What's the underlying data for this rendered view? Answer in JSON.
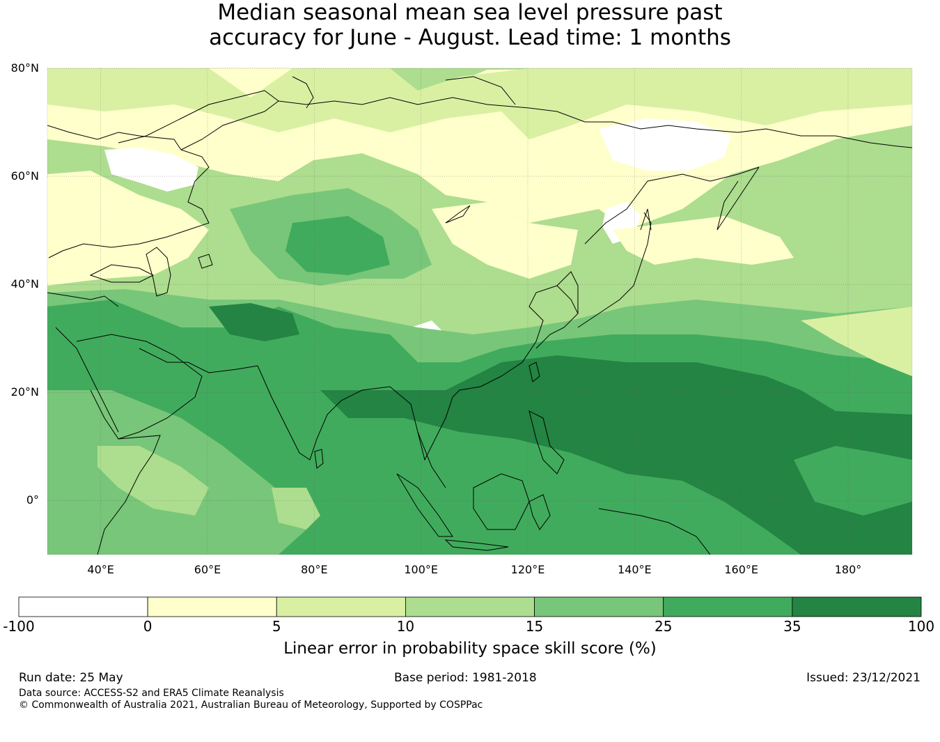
{
  "title": {
    "line1": "Median seasonal mean sea level pressure past",
    "line2": "accuracy for June - August. Lead time: 1 months"
  },
  "map": {
    "lon_range": [
      30,
      192
    ],
    "lat_range": [
      -10,
      80
    ],
    "lat_ticks": [
      {
        "value": 80,
        "label": "80°N"
      },
      {
        "value": 60,
        "label": "60°N"
      },
      {
        "value": 40,
        "label": "40°N"
      },
      {
        "value": 20,
        "label": "20°N"
      },
      {
        "value": 0,
        "label": "0°"
      }
    ],
    "lon_ticks": [
      {
        "value": 40,
        "label": "40°E"
      },
      {
        "value": 60,
        "label": "60°E"
      },
      {
        "value": 80,
        "label": "80°E"
      },
      {
        "value": 100,
        "label": "100°E"
      },
      {
        "value": 120,
        "label": "120°E"
      },
      {
        "value": 140,
        "label": "140°E"
      },
      {
        "value": 160,
        "label": "160°E"
      },
      {
        "value": 180,
        "label": "180°"
      }
    ],
    "gridlines": true,
    "coastlines": true
  },
  "colorbar": {
    "title": "Linear error in probability space skill score (%)",
    "boundaries": [
      "-100",
      "0",
      "5",
      "10",
      "15",
      "25",
      "35",
      "100"
    ],
    "colors": [
      "#ffffff",
      "#ffffcc",
      "#d9f0a3",
      "#addd8e",
      "#78c679",
      "#41ab5d",
      "#238443"
    ]
  },
  "footer": {
    "run_date": "Run date: 25 May",
    "base_period": "Base period: 1981-2018",
    "issued": "Issued: 23/12/2021",
    "data_source": "Data source: ACCESS-S2 and ERA5 Climate Reanalysis",
    "copyright": "© Commonwealth of Australia 2021, Australian Bureau of Meteorology, Supported by COSPPac"
  }
}
